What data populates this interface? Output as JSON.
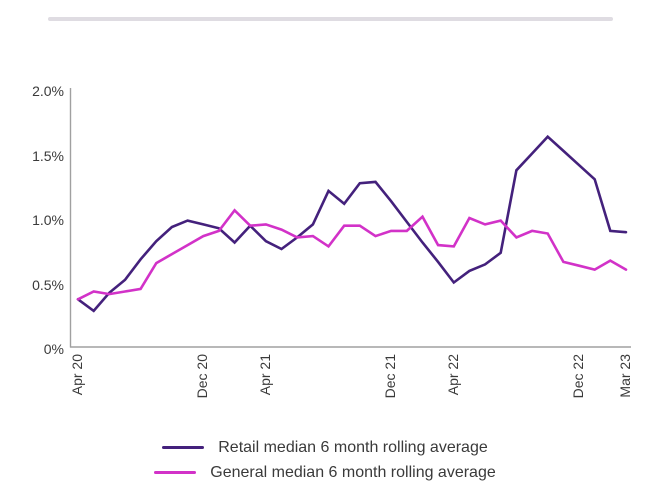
{
  "page": {
    "background": "#ffffff",
    "divider_color": "#dfdce2"
  },
  "chart_data": {
    "type": "line",
    "title": "",
    "xlabel": "",
    "ylabel": "",
    "x_unit": "month",
    "x_range": [
      "Apr 2020",
      "Mar 2023"
    ],
    "ylim": [
      0,
      2.0
    ],
    "grid": false,
    "legend_position": "bottom",
    "axis_color": "#a0a0a0",
    "yticks": [
      {
        "label": "0%",
        "value": 0
      },
      {
        "label": "0.5%",
        "value": 0.5
      },
      {
        "label": "1.0%",
        "value": 1.0
      },
      {
        "label": "1.5%",
        "value": 1.5
      },
      {
        "label": "2.0%",
        "value": 2.0
      }
    ],
    "xticks": [
      {
        "label": "Apr 20",
        "month_index": 0
      },
      {
        "label": "Dec 20",
        "month_index": 8
      },
      {
        "label": "Apr 21",
        "month_index": 12
      },
      {
        "label": "Dec 21",
        "month_index": 20
      },
      {
        "label": "Apr 22",
        "month_index": 24
      },
      {
        "label": "Dec 22",
        "month_index": 32
      },
      {
        "label": "Mar 23",
        "month_index": 35
      }
    ],
    "series": [
      {
        "name": "Retail median 6 month rolling average",
        "color": "#44217c",
        "values": [
          0.37,
          0.28,
          0.42,
          0.52,
          0.68,
          0.82,
          0.93,
          0.98,
          0.95,
          0.92,
          0.81,
          0.94,
          0.82,
          0.76,
          0.85,
          0.95,
          1.21,
          1.11,
          1.27,
          1.28,
          1.13,
          0.97,
          0.81,
          0.66,
          0.5,
          0.59,
          0.64,
          0.73,
          1.37,
          1.5,
          1.63,
          1.52,
          1.41,
          1.3,
          0.9,
          0.89
        ]
      },
      {
        "name": "General median 6 month rolling average",
        "color": "#d232c8",
        "values": [
          0.37,
          0.43,
          0.41,
          0.43,
          0.45,
          0.65,
          0.72,
          0.79,
          0.86,
          0.9,
          1.06,
          0.94,
          0.95,
          0.91,
          0.85,
          0.86,
          0.78,
          0.94,
          0.94,
          0.86,
          0.9,
          0.9,
          1.01,
          0.79,
          0.78,
          1.0,
          0.95,
          0.98,
          0.85,
          0.9,
          0.88,
          0.66,
          0.63,
          0.6,
          0.67,
          0.6
        ]
      }
    ]
  }
}
